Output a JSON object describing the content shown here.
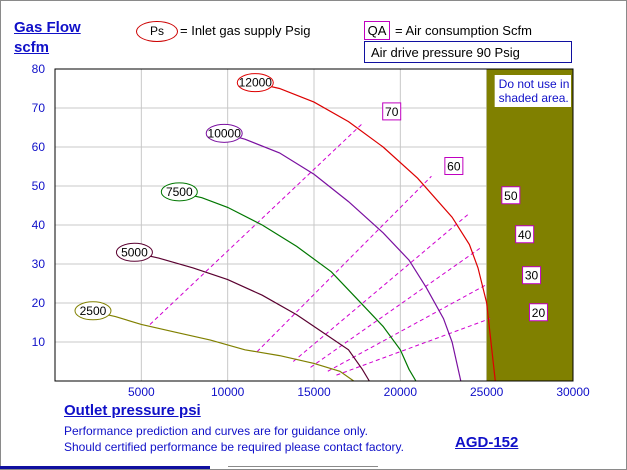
{
  "header": {
    "ylabel_line1": "Gas Flow",
    "ylabel_line2": "scfm",
    "ps_symbol": "Ps",
    "ps_text": "= Inlet gas supply  Psig",
    "qa_symbol": "QA",
    "qa_text": "= Air consumption  Scfm",
    "drive_pressure": "Air drive pressure  90 Psig"
  },
  "footer": {
    "xlabel": "Outlet pressure   psi",
    "note_line1": "Performance prediction and curves are for guidance only.",
    "note_line2": "Should certified performance be required please contact factory.",
    "model": "AGD-152"
  },
  "chart_data": {
    "type": "line",
    "xlim": [
      0,
      30000
    ],
    "ylim": [
      0,
      80
    ],
    "xticks": [
      5000,
      10000,
      15000,
      20000,
      25000,
      30000
    ],
    "yticks": [
      10,
      20,
      30,
      40,
      50,
      60,
      70,
      80
    ],
    "grid": true,
    "shaded_region": {
      "x_start": 25000,
      "x_end": 30000,
      "label": "Do not use in shaded area.",
      "color": "#808000"
    },
    "series": [
      {
        "name": "12000",
        "color": "#dd0000",
        "points": [
          [
            11500,
            76.5
          ],
          [
            13000,
            75
          ],
          [
            15000,
            71.5
          ],
          [
            17000,
            66.5
          ],
          [
            19000,
            60
          ],
          [
            21000,
            52
          ],
          [
            23000,
            42
          ],
          [
            24000,
            35
          ],
          [
            24500,
            29
          ],
          [
            25000,
            20
          ],
          [
            25200,
            12
          ],
          [
            25500,
            0
          ]
        ]
      },
      {
        "name": "10000",
        "color": "#7a10a0",
        "points": [
          [
            9800,
            63.5
          ],
          [
            11000,
            62
          ],
          [
            13000,
            58.5
          ],
          [
            15000,
            53
          ],
          [
            17000,
            46
          ],
          [
            19000,
            38
          ],
          [
            20500,
            31
          ],
          [
            21500,
            24
          ],
          [
            22500,
            16
          ],
          [
            23000,
            10
          ],
          [
            23500,
            0
          ]
        ]
      },
      {
        "name": "7500",
        "color": "#007700",
        "points": [
          [
            7000,
            48.5
          ],
          [
            8500,
            47
          ],
          [
            10000,
            44.5
          ],
          [
            12000,
            40
          ],
          [
            14000,
            34.5
          ],
          [
            16000,
            28
          ],
          [
            17500,
            21
          ],
          [
            19000,
            14
          ],
          [
            20000,
            8
          ],
          [
            20500,
            3
          ],
          [
            20900,
            0
          ]
        ]
      },
      {
        "name": "5000",
        "color": "#5a0030",
        "points": [
          [
            4500,
            33
          ],
          [
            6000,
            31.5
          ],
          [
            8000,
            29
          ],
          [
            10000,
            26
          ],
          [
            12000,
            22
          ],
          [
            14000,
            17
          ],
          [
            15500,
            12.5
          ],
          [
            17000,
            8
          ],
          [
            17800,
            3
          ],
          [
            18200,
            0
          ]
        ]
      },
      {
        "name": "2500",
        "color": "#808000",
        "points": [
          [
            2000,
            18
          ],
          [
            3500,
            16.5
          ],
          [
            5000,
            14.5
          ],
          [
            7000,
            12.5
          ],
          [
            9000,
            10.5
          ],
          [
            11000,
            8
          ],
          [
            13000,
            6.5
          ],
          [
            15000,
            4.5
          ],
          [
            16500,
            2.5
          ],
          [
            17300,
            0
          ]
        ]
      }
    ],
    "ps_labels": [
      {
        "text": "12000",
        "x": 11600,
        "y": 76.5
      },
      {
        "text": "10000",
        "x": 9800,
        "y": 63.5
      },
      {
        "text": "7500",
        "x": 7200,
        "y": 48.5
      },
      {
        "text": "5000",
        "x": 4600,
        "y": 33
      },
      {
        "text": "2500",
        "x": 2200,
        "y": 18
      }
    ],
    "air_consumption": [
      {
        "name": "70",
        "from": [
          5500,
          14.5
        ],
        "to": [
          10700,
          29.2
        ],
        "label_at": [
          19500,
          69
        ],
        "end": [
          17800,
          66
        ]
      },
      {
        "name": "60",
        "from": [
          11700,
          7.5
        ],
        "to": [
          19500,
          55.5
        ],
        "label_at": [
          23100,
          55
        ],
        "end": [
          21800,
          52.5
        ]
      },
      {
        "name": "50",
        "from": [
          13800,
          5
        ],
        "to": [
          22600,
          45.5
        ],
        "label_at": [
          26400,
          47.5
        ],
        "end": [
          24000,
          43
        ]
      },
      {
        "name": "40",
        "from": [
          14800,
          3.5
        ],
        "to": [
          23800,
          35.5
        ],
        "label_at": [
          27200,
          37.5
        ],
        "end": [
          24600,
          34
        ]
      },
      {
        "name": "30",
        "from": [
          15800,
          2.5
        ],
        "to": [
          24500,
          24.5
        ],
        "label_at": [
          27600,
          27
        ],
        "end": [
          24900,
          24.5
        ]
      },
      {
        "name": "20",
        "from": [
          16300,
          1.5
        ],
        "to": [
          25000,
          16
        ],
        "label_at": [
          28000,
          17.5
        ],
        "end": [
          25200,
          16
        ]
      }
    ]
  }
}
